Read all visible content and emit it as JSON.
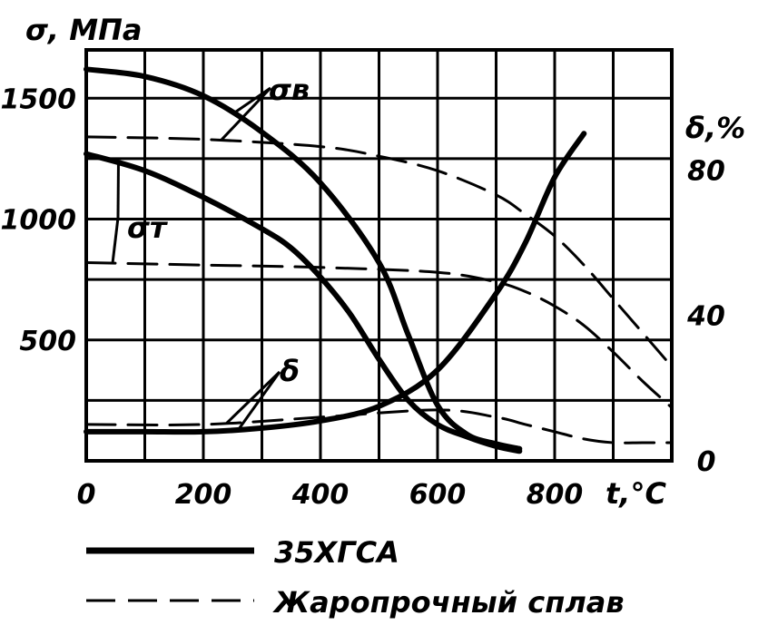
{
  "chart_data": {
    "type": "line",
    "x_axis": {
      "title": "t,°C",
      "min": 0,
      "max": 1000,
      "ticks": [
        0,
        200,
        400,
        600,
        800
      ],
      "tick_labels": [
        "0",
        "200",
        "400",
        "600",
        "800"
      ],
      "grid_step": 100
    },
    "y_axis_left": {
      "title": "σ, МПа",
      "min": 0,
      "max": 1700,
      "ticks": [
        500,
        1000,
        1500
      ],
      "tick_labels": [
        "500",
        "1000",
        "1500"
      ],
      "grid_step": 250
    },
    "y_axis_right": {
      "title": "δ,%",
      "min": 0,
      "max": 113,
      "ticks": [
        0,
        40,
        80
      ],
      "tick_labels": [
        "0",
        "40",
        "80"
      ]
    },
    "grid": true,
    "curve_labels": {
      "sigma_b": "σв",
      "sigma_t": "σт",
      "delta": "δ"
    },
    "series": [
      {
        "quantity": "sigma_b",
        "material": "35XGSA",
        "style": "solid",
        "axis": "left",
        "x": [
          0,
          100,
          200,
          300,
          400,
          500,
          550,
          600,
          650,
          700,
          740
        ],
        "y": [
          1620,
          1590,
          1510,
          1360,
          1150,
          820,
          520,
          230,
          110,
          70,
          50
        ]
      },
      {
        "quantity": "sigma_t",
        "material": "35XGSA",
        "style": "solid",
        "axis": "left",
        "x": [
          0,
          100,
          200,
          300,
          350,
          400,
          450,
          500,
          550,
          600,
          650,
          700,
          740
        ],
        "y": [
          1270,
          1200,
          1090,
          960,
          880,
          760,
          610,
          420,
          250,
          150,
          100,
          60,
          40
        ]
      },
      {
        "quantity": "delta",
        "material": "35XGSA",
        "style": "solid",
        "axis": "right",
        "x": [
          0,
          100,
          200,
          300,
          400,
          500,
          600,
          700,
          750,
          800,
          850
        ],
        "y": [
          8,
          8,
          8,
          9,
          11,
          15,
          25,
          46,
          60,
          78,
          90
        ]
      },
      {
        "quantity": "sigma_b",
        "material": "heat_resistant",
        "style": "dashed",
        "axis": "left",
        "x": [
          0,
          200,
          400,
          500,
          600,
          700,
          750,
          800,
          850,
          900,
          950,
          1000
        ],
        "y": [
          1340,
          1330,
          1300,
          1260,
          1200,
          1100,
          1020,
          930,
          810,
          670,
          530,
          390
        ]
      },
      {
        "quantity": "sigma_t",
        "material": "heat_resistant",
        "style": "dashed",
        "axis": "left",
        "x": [
          0,
          200,
          400,
          600,
          700,
          750,
          800,
          850,
          900,
          950,
          1000
        ],
        "y": [
          820,
          810,
          800,
          780,
          740,
          700,
          640,
          560,
          450,
          330,
          220
        ]
      },
      {
        "quantity": "delta",
        "material": "heat_resistant",
        "style": "dashed",
        "axis": "right",
        "x": [
          0,
          200,
          400,
          600,
          700,
          750,
          800,
          850,
          900,
          950,
          1000
        ],
        "y": [
          10,
          10,
          12,
          14,
          12,
          10,
          8,
          6,
          5,
          5,
          5
        ]
      }
    ],
    "legend": {
      "placement": "bottom",
      "entries": [
        {
          "label": "35ХГСА",
          "style": "solid"
        },
        {
          "label": "Жаропрочный сплав",
          "style": "dashed"
        }
      ]
    }
  }
}
